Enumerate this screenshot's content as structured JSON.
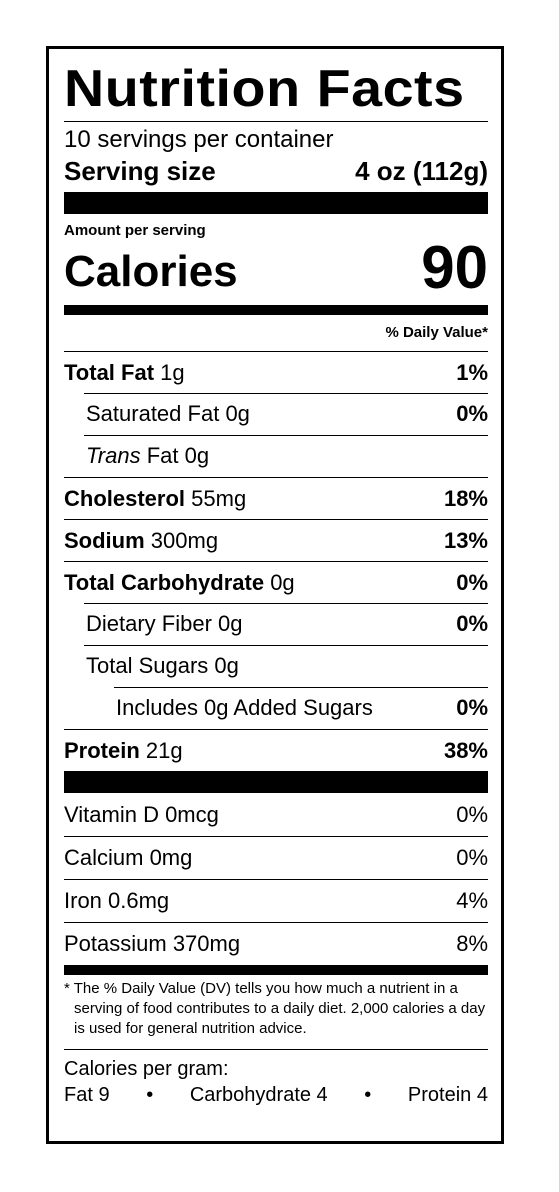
{
  "title": "Nutrition Facts",
  "servings_per_container": "10 servings per container",
  "serving_size": {
    "label": "Serving size",
    "value": "4 oz (112g)"
  },
  "amount_per_serving": "Amount per serving",
  "calories": {
    "label": "Calories",
    "value": "90"
  },
  "daily_value_header": "% Daily Value*",
  "nutrients": [
    {
      "name": "Total Fat",
      "amount": "1g",
      "dv": "1%"
    },
    {
      "name": "Saturated Fat",
      "amount": "0g",
      "dv": "0%"
    },
    {
      "name_italic": "Trans",
      "name": "Fat",
      "amount": "0g",
      "dv": ""
    },
    {
      "name": "Cholesterol",
      "amount": "55mg",
      "dv": "18%"
    },
    {
      "name": "Sodium",
      "amount": "300mg",
      "dv": "13%"
    },
    {
      "name": "Total Carbohydrate",
      "amount": "0g",
      "dv": "0%"
    },
    {
      "name": "Dietary Fiber",
      "amount": "0g",
      "dv": "0%"
    },
    {
      "name": "Total Sugars",
      "amount": "0g",
      "dv": ""
    },
    {
      "name": "Includes 0g Added Sugars",
      "amount": "",
      "dv": "0%"
    },
    {
      "name": "Protein",
      "amount": "21g",
      "dv": "38%"
    }
  ],
  "vitamins": [
    {
      "text": "Vitamin D 0mcg",
      "dv": "0%"
    },
    {
      "text": "Calcium 0mg",
      "dv": "0%"
    },
    {
      "text": "Iron 0.6mg",
      "dv": "4%"
    },
    {
      "text": "Potassium 370mg",
      "dv": "8%"
    }
  ],
  "footnote": "* The % Daily Value (DV) tells you how much a nutrient in a serving of food contributes to a daily diet. 2,000 calories a day is used for general nutrition advice.",
  "calories_per_gram": {
    "label": "Calories per gram:",
    "fat": "Fat 9",
    "bullet": "•",
    "carbohydrate": "Carbohydrate 4",
    "protein": "Protein 4"
  }
}
